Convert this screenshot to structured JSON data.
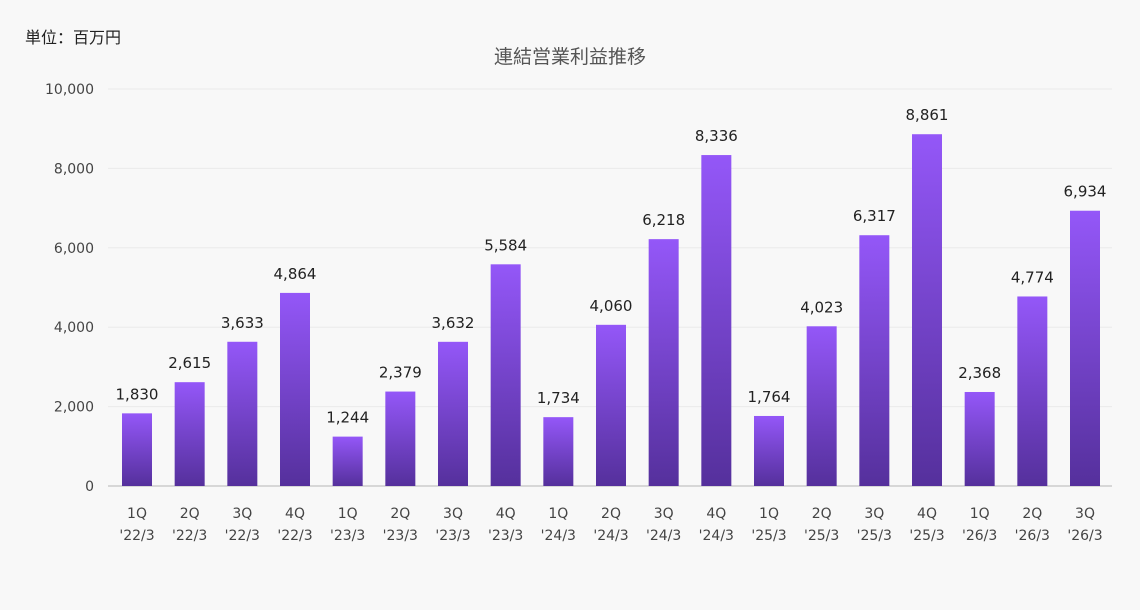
{
  "chart_data": {
    "type": "bar",
    "unit_label": "単位：百万円",
    "title": "連結営業利益推移",
    "categories": [
      [
        "1Q",
        "'22/3"
      ],
      [
        "2Q",
        "'22/3"
      ],
      [
        "3Q",
        "'22/3"
      ],
      [
        "4Q",
        "'22/3"
      ],
      [
        "1Q",
        "'23/3"
      ],
      [
        "2Q",
        "'23/3"
      ],
      [
        "3Q",
        "'23/3"
      ],
      [
        "4Q",
        "'23/3"
      ],
      [
        "1Q",
        "'24/3"
      ],
      [
        "2Q",
        "'24/3"
      ],
      [
        "3Q",
        "'24/3"
      ],
      [
        "4Q",
        "'24/3"
      ],
      [
        "1Q",
        "'25/3"
      ],
      [
        "2Q",
        "'25/3"
      ],
      [
        "3Q",
        "'25/3"
      ],
      [
        "4Q",
        "'25/3"
      ],
      [
        "1Q",
        "'26/3"
      ],
      [
        "2Q",
        "'26/3"
      ],
      [
        "3Q",
        "'26/3"
      ]
    ],
    "values": [
      1830,
      2615,
      3633,
      4864,
      1244,
      2379,
      3632,
      5584,
      1734,
      4060,
      6218,
      8336,
      1764,
      4023,
      6317,
      8861,
      2368,
      4774,
      6934
    ],
    "ylim": [
      0,
      10000
    ],
    "yticks": [
      0,
      2000,
      4000,
      6000,
      8000,
      10000
    ],
    "grid": true,
    "legend": "none",
    "colors": {
      "bar_top": "#9457f8",
      "bar_bottom": "#55309c",
      "grid": "#eaeaea",
      "axis": "#cccccc"
    }
  }
}
